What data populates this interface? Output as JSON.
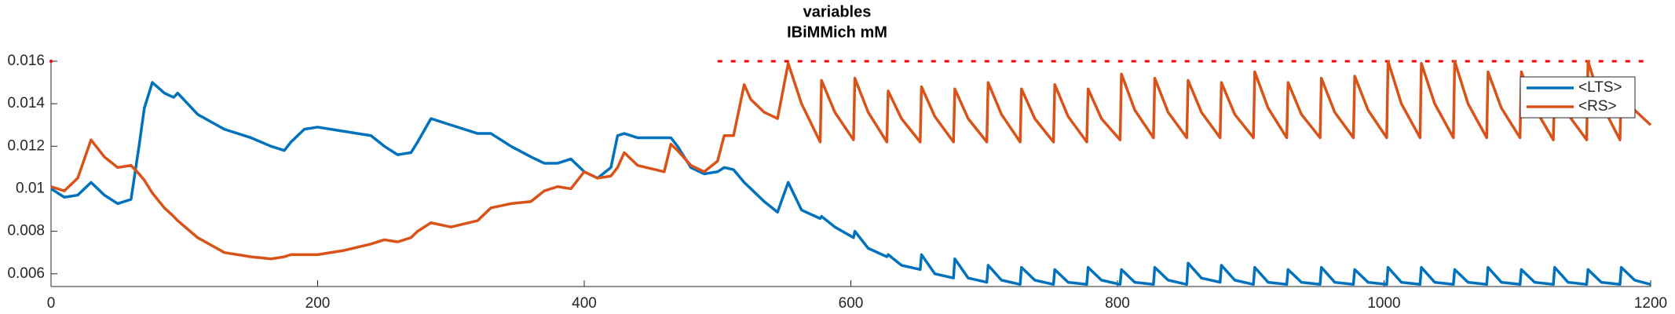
{
  "chart_data": {
    "type": "line",
    "title": "variables",
    "subtitle": "IBiMMich mM",
    "x": [
      0,
      10,
      20,
      30,
      40,
      50,
      60,
      66,
      70,
      76,
      85,
      92,
      95,
      110,
      130,
      150,
      165,
      175,
      180,
      190,
      200,
      220,
      240,
      250,
      260,
      270,
      275,
      285,
      300,
      320,
      330,
      345,
      360,
      370,
      380,
      390,
      400,
      410,
      420,
      425,
      430,
      440,
      460,
      465,
      470,
      480,
      490,
      500,
      505,
      512,
      520,
      525,
      535,
      545,
      553,
      563,
      577,
      578,
      588,
      602,
      603,
      613,
      627,
      628,
      638,
      652,
      653,
      663,
      677,
      678,
      688,
      702,
      703,
      713,
      727,
      728,
      738,
      752,
      753,
      763,
      777,
      778,
      788,
      802,
      803,
      813,
      827,
      828,
      838,
      852,
      853,
      863,
      877,
      878,
      888,
      902,
      903,
      913,
      927,
      928,
      938,
      952,
      953,
      963,
      977,
      978,
      988,
      1002,
      1003,
      1013,
      1027,
      1028,
      1038,
      1052,
      1053,
      1063,
      1077,
      1078,
      1088,
      1102,
      1103,
      1113,
      1127,
      1128,
      1138,
      1152,
      1153,
      1163,
      1177,
      1178,
      1188,
      1200
    ],
    "series": [
      {
        "name": "<LTS>",
        "color": "#0072bd",
        "values": [
          0.01,
          0.0096,
          0.0097,
          0.0103,
          0.0097,
          0.0093,
          0.0095,
          0.012,
          0.0138,
          0.015,
          0.0145,
          0.0143,
          0.0145,
          0.0135,
          0.0128,
          0.0124,
          0.012,
          0.0118,
          0.0122,
          0.0128,
          0.0129,
          0.0127,
          0.0125,
          0.012,
          0.0116,
          0.0117,
          0.0122,
          0.0133,
          0.013,
          0.0126,
          0.0126,
          0.012,
          0.0115,
          0.0112,
          0.0112,
          0.0114,
          0.0108,
          0.0105,
          0.011,
          0.0125,
          0.0126,
          0.0124,
          0.0124,
          0.0124,
          0.012,
          0.011,
          0.0107,
          0.0108,
          0.011,
          0.0109,
          0.0103,
          0.01,
          0.0094,
          0.0089,
          0.0103,
          0.009,
          0.0086,
          0.0087,
          0.0082,
          0.0077,
          0.008,
          0.0072,
          0.0068,
          0.0069,
          0.0064,
          0.0062,
          0.0069,
          0.006,
          0.0058,
          0.0067,
          0.0058,
          0.0056,
          0.0064,
          0.0057,
          0.0055,
          0.0063,
          0.0057,
          0.0055,
          0.0062,
          0.0056,
          0.0055,
          0.0063,
          0.0057,
          0.0055,
          0.0062,
          0.0056,
          0.0055,
          0.0063,
          0.0057,
          0.0055,
          0.0065,
          0.0058,
          0.0056,
          0.0064,
          0.0057,
          0.0055,
          0.0063,
          0.0056,
          0.0055,
          0.0062,
          0.0056,
          0.0055,
          0.0063,
          0.0056,
          0.0055,
          0.0062,
          0.0056,
          0.0055,
          0.0063,
          0.0056,
          0.0055,
          0.0063,
          0.0056,
          0.0055,
          0.0062,
          0.0056,
          0.0055,
          0.0063,
          0.0056,
          0.0055,
          0.0062,
          0.0056,
          0.0055,
          0.0063,
          0.0056,
          0.0055,
          0.0062,
          0.0056,
          0.0055,
          0.0063,
          0.0057,
          0.0055
        ]
      },
      {
        "name": "<RS>",
        "color": "#d95319",
        "values": [
          0.0101,
          0.0099,
          0.0105,
          0.0123,
          0.0115,
          0.011,
          0.0111,
          0.0107,
          0.0104,
          0.0098,
          0.0091,
          0.0087,
          0.0085,
          0.0077,
          0.007,
          0.0068,
          0.0067,
          0.0068,
          0.0069,
          0.0069,
          0.0069,
          0.0071,
          0.0074,
          0.0076,
          0.0075,
          0.0077,
          0.008,
          0.0084,
          0.0082,
          0.0085,
          0.0091,
          0.0093,
          0.0094,
          0.0099,
          0.0101,
          0.01,
          0.0108,
          0.0105,
          0.0106,
          0.011,
          0.0117,
          0.0111,
          0.0108,
          0.0121,
          0.0118,
          0.0111,
          0.0108,
          0.0113,
          0.0125,
          0.0125,
          0.0149,
          0.0142,
          0.0136,
          0.0133,
          0.0159,
          0.014,
          0.0122,
          0.0151,
          0.0136,
          0.0123,
          0.0152,
          0.0136,
          0.0122,
          0.0146,
          0.0133,
          0.0122,
          0.0148,
          0.0134,
          0.0122,
          0.0147,
          0.0133,
          0.0122,
          0.015,
          0.0135,
          0.0122,
          0.0147,
          0.0133,
          0.0122,
          0.0149,
          0.0134,
          0.0122,
          0.0147,
          0.0133,
          0.0123,
          0.0154,
          0.0137,
          0.0124,
          0.0152,
          0.0136,
          0.0124,
          0.0151,
          0.0136,
          0.0124,
          0.015,
          0.0135,
          0.0124,
          0.0155,
          0.0138,
          0.0124,
          0.015,
          0.0135,
          0.0124,
          0.0152,
          0.0136,
          0.0124,
          0.0153,
          0.0137,
          0.0124,
          0.016,
          0.014,
          0.0124,
          0.0159,
          0.014,
          0.0124,
          0.016,
          0.014,
          0.0124,
          0.0155,
          0.0138,
          0.0124,
          0.0155,
          0.0138,
          0.0123,
          0.015,
          0.0135,
          0.0123,
          0.016,
          0.014,
          0.0123,
          0.0152,
          0.0137,
          0.013
        ]
      }
    ],
    "reference_line": {
      "y": 0.016,
      "x": [
        500,
        1200
      ],
      "color": "#ff0000"
    },
    "xlim": [
      0,
      1200
    ],
    "ylim": [
      0.0054,
      0.016
    ],
    "xticks": [
      0,
      200,
      400,
      600,
      800,
      1000,
      1200
    ],
    "yticks": [
      0.006,
      0.008,
      0.01,
      0.012,
      0.014,
      0.016
    ],
    "legend": "northeast"
  }
}
